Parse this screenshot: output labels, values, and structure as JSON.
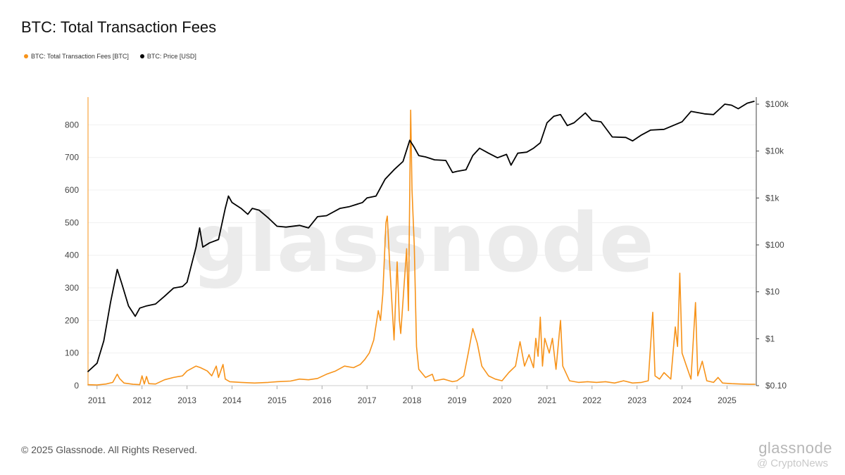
{
  "title": "BTC: Total Transaction Fees",
  "legend": [
    {
      "label": "BTC: Total Transaction Fees [BTC]",
      "color": "#f7931a"
    },
    {
      "label": "BTC: Price [USD]",
      "color": "#000000"
    }
  ],
  "watermark": "glassnode",
  "copyright": "© 2025 Glassnode. All Rights Reserved.",
  "corner_brand": "glassnode",
  "corner_watermark": "@ CryptoNews",
  "chart_data": {
    "type": "line",
    "title": "BTC: Total Transaction Fees",
    "x_ticks": [
      "2011",
      "2012",
      "2013",
      "2014",
      "2015",
      "2016",
      "2017",
      "2018",
      "2019",
      "2020",
      "2021",
      "2022",
      "2023",
      "2024",
      "2025"
    ],
    "xlim": [
      2010.8,
      2025.65
    ],
    "left_axis": {
      "series": "BTC: Total Transaction Fees [BTC]",
      "ticks": [
        0,
        100,
        200,
        300,
        400,
        500,
        600,
        700,
        800
      ],
      "ylim": [
        0,
        885
      ]
    },
    "right_axis": {
      "series": "BTC: Price [USD]",
      "scale": "log",
      "tick_values": [
        0.1,
        1,
        10,
        100,
        1000,
        10000,
        100000
      ],
      "tick_labels": [
        "$0.10",
        "$1",
        "$10",
        "$100",
        "$1k",
        "$10k",
        "$100k"
      ],
      "ylim": [
        0.1,
        100000
      ]
    },
    "grid": true,
    "series": [
      {
        "name": "BTC: Total Transaction Fees [BTC]",
        "axis": "left",
        "color": "#f7931a",
        "points": [
          [
            2010.8,
            3
          ],
          [
            2011.0,
            2
          ],
          [
            2011.2,
            5
          ],
          [
            2011.35,
            10
          ],
          [
            2011.45,
            35
          ],
          [
            2011.5,
            22
          ],
          [
            2011.6,
            8
          ],
          [
            2011.8,
            4
          ],
          [
            2011.95,
            3
          ],
          [
            2012.0,
            30
          ],
          [
            2012.05,
            5
          ],
          [
            2012.1,
            28
          ],
          [
            2012.15,
            6
          ],
          [
            2012.3,
            5
          ],
          [
            2012.5,
            18
          ],
          [
            2012.7,
            25
          ],
          [
            2012.9,
            30
          ],
          [
            2013.0,
            45
          ],
          [
            2013.2,
            60
          ],
          [
            2013.3,
            55
          ],
          [
            2013.45,
            45
          ],
          [
            2013.55,
            30
          ],
          [
            2013.65,
            60
          ],
          [
            2013.7,
            25
          ],
          [
            2013.8,
            65
          ],
          [
            2013.85,
            20
          ],
          [
            2013.95,
            12
          ],
          [
            2014.2,
            10
          ],
          [
            2014.5,
            8
          ],
          [
            2014.8,
            10
          ],
          [
            2015.0,
            12
          ],
          [
            2015.3,
            14
          ],
          [
            2015.5,
            20
          ],
          [
            2015.7,
            18
          ],
          [
            2015.9,
            22
          ],
          [
            2016.1,
            35
          ],
          [
            2016.3,
            45
          ],
          [
            2016.5,
            60
          ],
          [
            2016.7,
            55
          ],
          [
            2016.85,
            65
          ],
          [
            2016.95,
            80
          ],
          [
            2017.05,
            100
          ],
          [
            2017.15,
            140
          ],
          [
            2017.25,
            230
          ],
          [
            2017.3,
            200
          ],
          [
            2017.35,
            280
          ],
          [
            2017.42,
            500
          ],
          [
            2017.45,
            520
          ],
          [
            2017.5,
            380
          ],
          [
            2017.55,
            260
          ],
          [
            2017.6,
            140
          ],
          [
            2017.67,
            380
          ],
          [
            2017.72,
            200
          ],
          [
            2017.75,
            160
          ],
          [
            2017.82,
            300
          ],
          [
            2017.88,
            420
          ],
          [
            2017.92,
            230
          ],
          [
            2017.97,
            845
          ],
          [
            2018.0,
            600
          ],
          [
            2018.05,
            430
          ],
          [
            2018.1,
            120
          ],
          [
            2018.15,
            50
          ],
          [
            2018.3,
            25
          ],
          [
            2018.45,
            35
          ],
          [
            2018.5,
            15
          ],
          [
            2018.7,
            20
          ],
          [
            2018.9,
            12
          ],
          [
            2019.0,
            15
          ],
          [
            2019.15,
            30
          ],
          [
            2019.25,
            100
          ],
          [
            2019.35,
            175
          ],
          [
            2019.45,
            130
          ],
          [
            2019.55,
            60
          ],
          [
            2019.7,
            30
          ],
          [
            2019.85,
            20
          ],
          [
            2020.0,
            15
          ],
          [
            2020.15,
            40
          ],
          [
            2020.3,
            60
          ],
          [
            2020.4,
            135
          ],
          [
            2020.5,
            60
          ],
          [
            2020.6,
            95
          ],
          [
            2020.7,
            55
          ],
          [
            2020.75,
            145
          ],
          [
            2020.8,
            90
          ],
          [
            2020.85,
            210
          ],
          [
            2020.9,
            60
          ],
          [
            2020.95,
            145
          ],
          [
            2021.05,
            100
          ],
          [
            2021.12,
            145
          ],
          [
            2021.2,
            50
          ],
          [
            2021.3,
            200
          ],
          [
            2021.35,
            60
          ],
          [
            2021.5,
            15
          ],
          [
            2021.7,
            10
          ],
          [
            2021.9,
            12
          ],
          [
            2022.1,
            10
          ],
          [
            2022.3,
            12
          ],
          [
            2022.5,
            8
          ],
          [
            2022.7,
            15
          ],
          [
            2022.9,
            8
          ],
          [
            2023.1,
            10
          ],
          [
            2023.25,
            15
          ],
          [
            2023.35,
            225
          ],
          [
            2023.4,
            30
          ],
          [
            2023.5,
            20
          ],
          [
            2023.6,
            40
          ],
          [
            2023.75,
            20
          ],
          [
            2023.85,
            180
          ],
          [
            2023.9,
            120
          ],
          [
            2023.95,
            345
          ],
          [
            2024.0,
            100
          ],
          [
            2024.1,
            60
          ],
          [
            2024.2,
            20
          ],
          [
            2024.3,
            255
          ],
          [
            2024.35,
            30
          ],
          [
            2024.45,
            75
          ],
          [
            2024.55,
            15
          ],
          [
            2024.7,
            10
          ],
          [
            2024.8,
            25
          ],
          [
            2024.9,
            8
          ],
          [
            2025.1,
            6
          ],
          [
            2025.3,
            5
          ],
          [
            2025.5,
            4
          ],
          [
            2025.62,
            4
          ]
        ]
      },
      {
        "name": "BTC: Price [USD]",
        "axis": "right",
        "color": "#000000",
        "points": [
          [
            2010.8,
            0.2
          ],
          [
            2011.0,
            0.3
          ],
          [
            2011.15,
            0.9
          ],
          [
            2011.3,
            6
          ],
          [
            2011.45,
            30
          ],
          [
            2011.55,
            15
          ],
          [
            2011.7,
            5
          ],
          [
            2011.85,
            3
          ],
          [
            2011.95,
            4.5
          ],
          [
            2012.1,
            5
          ],
          [
            2012.3,
            5.5
          ],
          [
            2012.5,
            8
          ],
          [
            2012.7,
            12
          ],
          [
            2012.9,
            13
          ],
          [
            2013.0,
            16
          ],
          [
            2013.2,
            90
          ],
          [
            2013.28,
            230
          ],
          [
            2013.35,
            90
          ],
          [
            2013.5,
            110
          ],
          [
            2013.7,
            130
          ],
          [
            2013.85,
            600
          ],
          [
            2013.92,
            1100
          ],
          [
            2014.0,
            800
          ],
          [
            2014.2,
            600
          ],
          [
            2014.35,
            450
          ],
          [
            2014.45,
            600
          ],
          [
            2014.6,
            550
          ],
          [
            2014.8,
            380
          ],
          [
            2015.0,
            250
          ],
          [
            2015.2,
            240
          ],
          [
            2015.5,
            260
          ],
          [
            2015.7,
            230
          ],
          [
            2015.9,
            400
          ],
          [
            2016.1,
            420
          ],
          [
            2016.4,
            600
          ],
          [
            2016.6,
            650
          ],
          [
            2016.9,
            800
          ],
          [
            2017.0,
            1000
          ],
          [
            2017.2,
            1100
          ],
          [
            2017.4,
            2500
          ],
          [
            2017.6,
            4000
          ],
          [
            2017.8,
            6000
          ],
          [
            2017.95,
            17000
          ],
          [
            2018.05,
            12000
          ],
          [
            2018.15,
            8000
          ],
          [
            2018.3,
            7500
          ],
          [
            2018.5,
            6500
          ],
          [
            2018.75,
            6300
          ],
          [
            2018.9,
            3500
          ],
          [
            2019.0,
            3700
          ],
          [
            2019.2,
            4000
          ],
          [
            2019.35,
            8000
          ],
          [
            2019.5,
            11500
          ],
          [
            2019.7,
            9000
          ],
          [
            2019.9,
            7200
          ],
          [
            2020.1,
            8500
          ],
          [
            2020.2,
            5000
          ],
          [
            2020.35,
            9000
          ],
          [
            2020.55,
            9500
          ],
          [
            2020.7,
            11500
          ],
          [
            2020.85,
            15000
          ],
          [
            2021.0,
            40000
          ],
          [
            2021.15,
            55000
          ],
          [
            2021.3,
            60000
          ],
          [
            2021.45,
            35000
          ],
          [
            2021.6,
            40000
          ],
          [
            2021.85,
            65000
          ],
          [
            2022.0,
            45000
          ],
          [
            2022.2,
            42000
          ],
          [
            2022.45,
            20000
          ],
          [
            2022.75,
            19500
          ],
          [
            2022.9,
            16500
          ],
          [
            2023.1,
            22000
          ],
          [
            2023.3,
            28000
          ],
          [
            2023.6,
            29000
          ],
          [
            2023.8,
            35000
          ],
          [
            2024.0,
            42000
          ],
          [
            2024.2,
            70000
          ],
          [
            2024.5,
            62000
          ],
          [
            2024.7,
            60000
          ],
          [
            2024.95,
            100000
          ],
          [
            2025.1,
            95000
          ],
          [
            2025.25,
            80000
          ],
          [
            2025.45,
            105000
          ],
          [
            2025.6,
            115000
          ]
        ]
      }
    ]
  }
}
